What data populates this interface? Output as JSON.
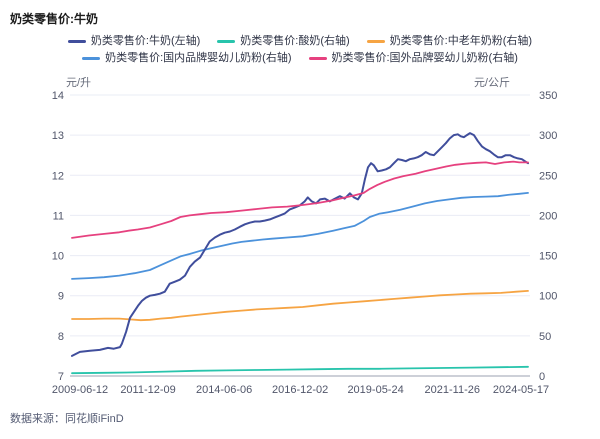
{
  "page": {
    "title": "奶类零售价:牛奶",
    "source": "数据来源：同花顺iFinD"
  },
  "chart_data": {
    "type": "line",
    "title": "奶类零售价:牛奶",
    "grid": true,
    "legend_position": "top",
    "left_axis": {
      "unit": "元/升",
      "min": 7,
      "max": 14,
      "ticks": [
        7,
        8,
        9,
        10,
        11,
        12,
        13,
        14
      ]
    },
    "right_axis": {
      "unit": "元/公斤",
      "min": 0,
      "max": 350,
      "ticks": [
        0,
        50,
        100,
        150,
        200,
        250,
        300,
        350
      ]
    },
    "x_axis": {
      "ticks": [
        {
          "label": "2009-06-12",
          "year": 2009.45
        },
        {
          "label": "2011-12-09",
          "year": 2011.94
        },
        {
          "label": "2014-06-06",
          "year": 2014.43
        },
        {
          "label": "2016-12-02",
          "year": 2016.92
        },
        {
          "label": "2019-05-24",
          "year": 2019.39
        },
        {
          "label": "2021-11-26",
          "year": 2021.9
        },
        {
          "label": "2024-05-17",
          "year": 2024.38
        }
      ],
      "range": [
        2009.45,
        2024.38
      ]
    },
    "legend_rows": [
      [
        0,
        1,
        2
      ],
      [
        3,
        4
      ]
    ],
    "draw_order": [
      1,
      2,
      3,
      0,
      4
    ],
    "series": [
      {
        "name": "奶类零售价:牛奶(左轴)",
        "axis": "left",
        "color": "#404E9C",
        "points": [
          [
            2009.45,
            7.5
          ],
          [
            2009.71,
            7.6
          ],
          [
            2010.04,
            7.63
          ],
          [
            2010.36,
            7.65
          ],
          [
            2010.63,
            7.7
          ],
          [
            2010.82,
            7.68
          ],
          [
            2011.02,
            7.72
          ],
          [
            2011.08,
            7.8
          ],
          [
            2011.22,
            8.1
          ],
          [
            2011.35,
            8.45
          ],
          [
            2011.48,
            8.6
          ],
          [
            2011.61,
            8.75
          ],
          [
            2011.74,
            8.87
          ],
          [
            2011.87,
            8.95
          ],
          [
            2012.0,
            9.0
          ],
          [
            2012.16,
            9.02
          ],
          [
            2012.33,
            9.05
          ],
          [
            2012.49,
            9.1
          ],
          [
            2012.65,
            9.3
          ],
          [
            2012.82,
            9.35
          ],
          [
            2012.98,
            9.4
          ],
          [
            2013.15,
            9.5
          ],
          [
            2013.31,
            9.72
          ],
          [
            2013.47,
            9.85
          ],
          [
            2013.64,
            9.95
          ],
          [
            2013.8,
            10.15
          ],
          [
            2013.96,
            10.35
          ],
          [
            2014.13,
            10.45
          ],
          [
            2014.29,
            10.52
          ],
          [
            2014.45,
            10.57
          ],
          [
            2014.62,
            10.6
          ],
          [
            2014.78,
            10.65
          ],
          [
            2014.95,
            10.72
          ],
          [
            2015.11,
            10.78
          ],
          [
            2015.27,
            10.82
          ],
          [
            2015.44,
            10.85
          ],
          [
            2015.6,
            10.85
          ],
          [
            2015.76,
            10.87
          ],
          [
            2015.93,
            10.9
          ],
          [
            2016.09,
            10.95
          ],
          [
            2016.26,
            11.0
          ],
          [
            2016.42,
            11.05
          ],
          [
            2016.58,
            11.15
          ],
          [
            2016.75,
            11.2
          ],
          [
            2016.91,
            11.25
          ],
          [
            2017.07,
            11.35
          ],
          [
            2017.17,
            11.45
          ],
          [
            2017.3,
            11.35
          ],
          [
            2017.44,
            11.3
          ],
          [
            2017.57,
            11.4
          ],
          [
            2017.73,
            11.42
          ],
          [
            2017.89,
            11.35
          ],
          [
            2018.06,
            11.42
          ],
          [
            2018.22,
            11.48
          ],
          [
            2018.38,
            11.42
          ],
          [
            2018.55,
            11.55
          ],
          [
            2018.68,
            11.45
          ],
          [
            2018.81,
            11.4
          ],
          [
            2018.94,
            11.55
          ],
          [
            2019.04,
            11.9
          ],
          [
            2019.14,
            12.2
          ],
          [
            2019.24,
            12.3
          ],
          [
            2019.33,
            12.25
          ],
          [
            2019.46,
            12.1
          ],
          [
            2019.59,
            12.12
          ],
          [
            2019.73,
            12.15
          ],
          [
            2019.86,
            12.2
          ],
          [
            2019.99,
            12.3
          ],
          [
            2020.12,
            12.4
          ],
          [
            2020.25,
            12.38
          ],
          [
            2020.38,
            12.35
          ],
          [
            2020.51,
            12.4
          ],
          [
            2020.64,
            12.42
          ],
          [
            2020.77,
            12.45
          ],
          [
            2020.9,
            12.5
          ],
          [
            2021.03,
            12.58
          ],
          [
            2021.17,
            12.52
          ],
          [
            2021.3,
            12.5
          ],
          [
            2021.43,
            12.6
          ],
          [
            2021.56,
            12.7
          ],
          [
            2021.69,
            12.8
          ],
          [
            2021.82,
            12.92
          ],
          [
            2021.95,
            13.0
          ],
          [
            2022.08,
            13.02
          ],
          [
            2022.18,
            12.97
          ],
          [
            2022.28,
            12.95
          ],
          [
            2022.38,
            13.0
          ],
          [
            2022.48,
            13.05
          ],
          [
            2022.61,
            13.0
          ],
          [
            2022.74,
            12.85
          ],
          [
            2022.87,
            12.72
          ],
          [
            2023.0,
            12.65
          ],
          [
            2023.13,
            12.6
          ],
          [
            2023.26,
            12.52
          ],
          [
            2023.39,
            12.45
          ],
          [
            2023.52,
            12.45
          ],
          [
            2023.65,
            12.5
          ],
          [
            2023.79,
            12.5
          ],
          [
            2023.92,
            12.45
          ],
          [
            2024.05,
            12.42
          ],
          [
            2024.18,
            12.4
          ],
          [
            2024.28,
            12.35
          ],
          [
            2024.38,
            12.3
          ]
        ]
      },
      {
        "name": "奶类零售价:酸奶(右轴)",
        "axis": "right",
        "color": "#28C4AC",
        "points": [
          [
            2009.45,
            3.5
          ],
          [
            2010.5,
            4
          ],
          [
            2011.5,
            4.5
          ],
          [
            2012.5,
            5.5
          ],
          [
            2013.5,
            6.5
          ],
          [
            2014.5,
            7
          ],
          [
            2015.5,
            7.5
          ],
          [
            2016.5,
            8
          ],
          [
            2017.5,
            8.5
          ],
          [
            2018.5,
            9
          ],
          [
            2019.5,
            9
          ],
          [
            2020.5,
            9.5
          ],
          [
            2021.5,
            10
          ],
          [
            2022.5,
            10.5
          ],
          [
            2023.5,
            11
          ],
          [
            2024.38,
            11.5
          ]
        ]
      },
      {
        "name": "奶类零售价:中老年奶粉(右轴)",
        "axis": "right",
        "color": "#F6A443",
        "points": [
          [
            2009.45,
            71
          ],
          [
            2010.0,
            71
          ],
          [
            2010.5,
            71.5
          ],
          [
            2011.0,
            71.5
          ],
          [
            2011.35,
            70.5
          ],
          [
            2011.7,
            69.5
          ],
          [
            2012.0,
            70
          ],
          [
            2012.35,
            71.5
          ],
          [
            2012.7,
            72.5
          ],
          [
            2013.0,
            74
          ],
          [
            2013.5,
            76
          ],
          [
            2014.0,
            78
          ],
          [
            2014.5,
            80
          ],
          [
            2015.0,
            81.5
          ],
          [
            2015.5,
            83
          ],
          [
            2016.0,
            84
          ],
          [
            2016.5,
            85
          ],
          [
            2017.0,
            86
          ],
          [
            2017.5,
            88
          ],
          [
            2018.0,
            90
          ],
          [
            2018.5,
            91.5
          ],
          [
            2019.0,
            93
          ],
          [
            2019.5,
            94.5
          ],
          [
            2020.0,
            96
          ],
          [
            2020.5,
            97.5
          ],
          [
            2021.0,
            99
          ],
          [
            2021.5,
            100.5
          ],
          [
            2022.0,
            101.5
          ],
          [
            2022.5,
            102.5
          ],
          [
            2023.0,
            103
          ],
          [
            2023.5,
            103.5
          ],
          [
            2024.0,
            105
          ],
          [
            2024.38,
            106
          ]
        ]
      },
      {
        "name": "奶类零售价:国内品牌婴幼儿奶粉(右轴)",
        "axis": "right",
        "color": "#4C92DB",
        "points": [
          [
            2009.45,
            121
          ],
          [
            2010.0,
            122
          ],
          [
            2010.5,
            123
          ],
          [
            2011.0,
            125
          ],
          [
            2011.5,
            128
          ],
          [
            2012.0,
            132
          ],
          [
            2012.35,
            138
          ],
          [
            2012.7,
            144
          ],
          [
            2013.0,
            149
          ],
          [
            2013.3,
            152
          ],
          [
            2013.65,
            156
          ],
          [
            2014.0,
            159
          ],
          [
            2014.35,
            162
          ],
          [
            2014.7,
            165
          ],
          [
            2015.0,
            167
          ],
          [
            2015.35,
            168.5
          ],
          [
            2015.7,
            170
          ],
          [
            2016.0,
            171
          ],
          [
            2016.5,
            172.5
          ],
          [
            2017.0,
            174
          ],
          [
            2017.5,
            177
          ],
          [
            2018.0,
            181
          ],
          [
            2018.35,
            184
          ],
          [
            2018.7,
            187
          ],
          [
            2019.0,
            193
          ],
          [
            2019.2,
            198
          ],
          [
            2019.5,
            202
          ],
          [
            2019.8,
            204
          ],
          [
            2020.2,
            207
          ],
          [
            2020.6,
            211
          ],
          [
            2021.0,
            215
          ],
          [
            2021.4,
            218
          ],
          [
            2021.8,
            220
          ],
          [
            2022.2,
            222
          ],
          [
            2022.6,
            223
          ],
          [
            2023.0,
            223.5
          ],
          [
            2023.4,
            224
          ],
          [
            2023.8,
            226
          ],
          [
            2024.1,
            227
          ],
          [
            2024.38,
            228
          ]
        ]
      },
      {
        "name": "奶类零售价:国外品牌婴幼儿奶粉(右轴)",
        "axis": "right",
        "color": "#E6417F",
        "points": [
          [
            2009.45,
            172
          ],
          [
            2010.0,
            175
          ],
          [
            2010.5,
            177
          ],
          [
            2011.0,
            179
          ],
          [
            2011.3,
            181
          ],
          [
            2011.6,
            182.5
          ],
          [
            2012.0,
            185
          ],
          [
            2012.35,
            189
          ],
          [
            2012.7,
            193
          ],
          [
            2013.0,
            198
          ],
          [
            2013.3,
            200
          ],
          [
            2013.65,
            201.5
          ],
          [
            2014.0,
            203
          ],
          [
            2014.5,
            204
          ],
          [
            2015.0,
            206
          ],
          [
            2015.5,
            208
          ],
          [
            2016.0,
            210
          ],
          [
            2016.5,
            211
          ],
          [
            2017.0,
            213
          ],
          [
            2017.5,
            215.5
          ],
          [
            2018.0,
            219
          ],
          [
            2018.35,
            222
          ],
          [
            2018.7,
            225
          ],
          [
            2019.0,
            228
          ],
          [
            2019.2,
            233
          ],
          [
            2019.45,
            238
          ],
          [
            2019.7,
            242
          ],
          [
            2020.0,
            246
          ],
          [
            2020.3,
            249
          ],
          [
            2020.7,
            252
          ],
          [
            2021.0,
            255
          ],
          [
            2021.35,
            258
          ],
          [
            2021.7,
            261
          ],
          [
            2022.0,
            263
          ],
          [
            2022.35,
            264.5
          ],
          [
            2022.7,
            265.5
          ],
          [
            2023.0,
            266
          ],
          [
            2023.3,
            264
          ],
          [
            2023.6,
            266
          ],
          [
            2023.9,
            267
          ],
          [
            2024.1,
            266
          ],
          [
            2024.38,
            266
          ]
        ]
      }
    ]
  }
}
